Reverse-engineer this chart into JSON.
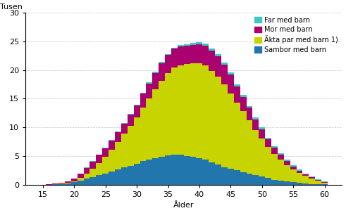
{
  "ages": [
    15,
    16,
    17,
    18,
    19,
    20,
    21,
    22,
    23,
    24,
    25,
    26,
    27,
    28,
    29,
    30,
    31,
    32,
    33,
    34,
    35,
    36,
    37,
    38,
    39,
    40,
    41,
    42,
    43,
    44,
    45,
    46,
    47,
    48,
    49,
    50,
    51,
    52,
    53,
    54,
    55,
    56,
    57,
    58,
    59,
    60
  ],
  "sambor_med_barn": [
    0.02,
    0.04,
    0.07,
    0.12,
    0.22,
    0.42,
    0.72,
    1.05,
    1.35,
    1.65,
    1.95,
    2.3,
    2.65,
    3.0,
    3.35,
    3.7,
    4.1,
    4.4,
    4.65,
    4.85,
    5.1,
    5.3,
    5.2,
    5.0,
    4.85,
    4.65,
    4.35,
    3.95,
    3.55,
    3.1,
    2.75,
    2.5,
    2.2,
    1.95,
    1.65,
    1.5,
    1.15,
    0.9,
    0.7,
    0.55,
    0.42,
    0.32,
    0.22,
    0.15,
    0.1,
    0.05
  ],
  "akta_par_med_barn": [
    0.0,
    0.0,
    0.02,
    0.05,
    0.1,
    0.2,
    0.45,
    0.85,
    1.4,
    2.1,
    2.9,
    3.85,
    4.85,
    5.9,
    6.95,
    8.0,
    9.3,
    10.6,
    12.0,
    13.3,
    14.3,
    15.1,
    15.6,
    16.0,
    16.3,
    16.5,
    16.4,
    15.9,
    15.3,
    14.4,
    13.2,
    11.8,
    10.6,
    9.3,
    7.9,
    6.6,
    5.5,
    4.5,
    3.65,
    2.9,
    2.25,
    1.75,
    1.3,
    0.95,
    0.62,
    0.35
  ],
  "mor_med_barn": [
    0.0,
    0.04,
    0.08,
    0.14,
    0.28,
    0.5,
    0.78,
    1.05,
    1.3,
    1.45,
    1.5,
    1.55,
    1.65,
    1.75,
    1.9,
    2.15,
    2.45,
    2.65,
    2.85,
    3.05,
    3.2,
    3.3,
    3.3,
    3.25,
    3.2,
    3.3,
    3.45,
    3.55,
    3.55,
    3.45,
    3.2,
    2.85,
    2.5,
    2.15,
    1.8,
    1.55,
    1.25,
    1.05,
    0.85,
    0.65,
    0.52,
    0.4,
    0.3,
    0.22,
    0.17,
    0.1
  ],
  "far_med_barn": [
    0.0,
    0.0,
    0.0,
    0.0,
    0.01,
    0.02,
    0.04,
    0.07,
    0.08,
    0.09,
    0.1,
    0.1,
    0.11,
    0.12,
    0.13,
    0.14,
    0.15,
    0.17,
    0.18,
    0.19,
    0.2,
    0.22,
    0.25,
    0.28,
    0.32,
    0.35,
    0.38,
    0.4,
    0.4,
    0.4,
    0.38,
    0.36,
    0.35,
    0.34,
    0.33,
    0.33,
    0.32,
    0.3,
    0.28,
    0.25,
    0.23,
    0.2,
    0.16,
    0.12,
    0.1,
    0.06
  ],
  "color_sambor": "#2176ae",
  "color_akta": "#c8d400",
  "color_mor": "#aa0070",
  "color_far": "#3dc8c8",
  "title": "Tusen",
  "xlabel": "Ålder",
  "ylim": [
    0,
    30
  ],
  "yticks": [
    0,
    5,
    10,
    15,
    20,
    25,
    30
  ],
  "xticks": [
    15,
    20,
    25,
    30,
    35,
    40,
    45,
    50,
    55,
    60
  ],
  "legend_labels": [
    "Far med barn",
    "Mor med barn",
    "Äkta par med barn 1)",
    "Sambor med barn"
  ],
  "legend_colors": [
    "#3dc8c8",
    "#aa0070",
    "#c8d400",
    "#2176ae"
  ]
}
